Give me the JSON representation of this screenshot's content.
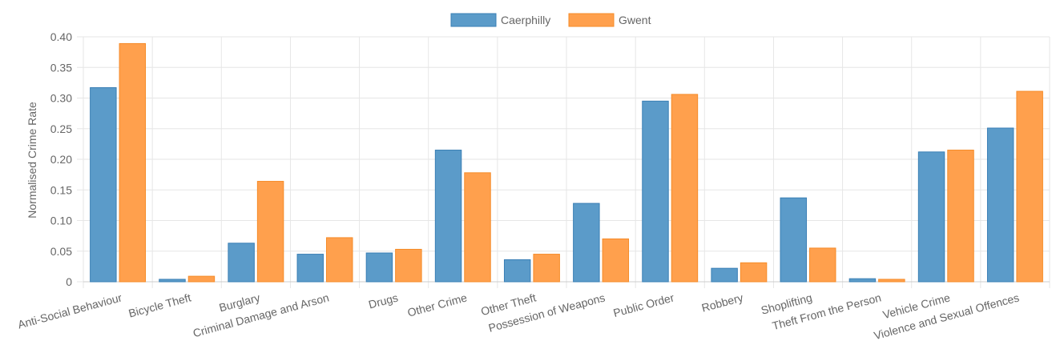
{
  "chart_data": {
    "type": "bar",
    "categories": [
      "Anti-Social Behaviour",
      "Bicycle Theft",
      "Burglary",
      "Criminal Damage and Arson",
      "Drugs",
      "Other Crime",
      "Other Theft",
      "Possession of Weapons",
      "Public Order",
      "Robbery",
      "Shoplifting",
      "Theft From the Person",
      "Vehicle Crime",
      "Violence and Sexual Offences"
    ],
    "series": [
      {
        "name": "Caerphilly",
        "color": "#5b9bc9",
        "border": "#3a7fb5",
        "values": [
          0.317,
          0.004,
          0.063,
          0.045,
          0.047,
          0.215,
          0.036,
          0.128,
          0.295,
          0.022,
          0.137,
          0.005,
          0.212,
          0.251
        ]
      },
      {
        "name": "Gwent",
        "color": "#ffa04d",
        "border": "#f58b28",
        "values": [
          0.389,
          0.009,
          0.164,
          0.072,
          0.053,
          0.178,
          0.045,
          0.07,
          0.306,
          0.031,
          0.055,
          0.004,
          0.215,
          0.311
        ]
      }
    ],
    "ylabel": "Normalised Crime Rate",
    "ylim": [
      0,
      0.4
    ],
    "yticks": [
      "0",
      "0.05",
      "0.10",
      "0.15",
      "0.20",
      "0.25",
      "0.30",
      "0.35",
      "0.40"
    ],
    "legend_position": "top-center",
    "grid": true
  }
}
